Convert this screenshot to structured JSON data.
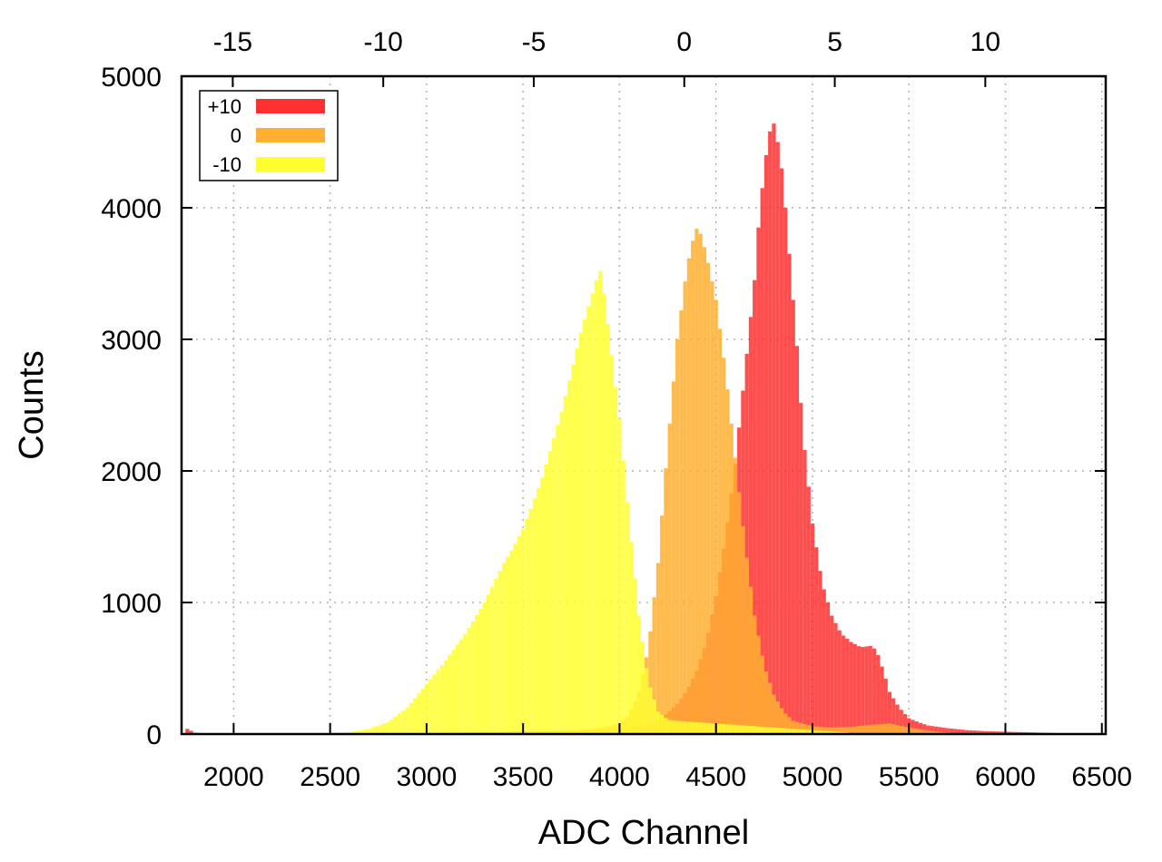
{
  "chart_data": {
    "type": "bar",
    "subtype": "overlapping-histogram",
    "xlabel": "ADC Channel",
    "ylabel": "Counts",
    "xlim": [
      1730,
      6520
    ],
    "ylim": [
      0,
      5000
    ],
    "x2lim": [
      -16.7,
      14.0
    ],
    "x_ticks": [
      2000,
      2500,
      3000,
      3500,
      4000,
      4500,
      5000,
      5500,
      6000,
      6500
    ],
    "x_tick_labels": [
      "2000",
      "2500",
      "3000",
      "3500",
      "4000",
      "4500",
      "5000",
      "5500",
      "6000",
      "6500"
    ],
    "x2_ticks": [
      -15,
      -10,
      -5,
      0,
      5,
      10
    ],
    "x2_tick_labels": [
      "-15",
      "-10",
      "-5",
      "0",
      "5",
      "10"
    ],
    "y_ticks": [
      0,
      1000,
      2000,
      3000,
      4000,
      5000
    ],
    "y_tick_labels": [
      "0",
      "1000",
      "2000",
      "3000",
      "4000",
      "5000"
    ],
    "grid": true,
    "legend_position": "top-left",
    "series": [
      {
        "name": "+10",
        "color": "#ff3030",
        "x": [
          1740,
          1760,
          1800,
          1850,
          1900,
          2000,
          2100,
          2200,
          2300,
          2400,
          2500,
          2600,
          2700,
          2800,
          2900,
          3000,
          3100,
          3200,
          3300,
          3400,
          3500,
          3600,
          3700,
          3800,
          3900,
          4000,
          4100,
          4150,
          4200,
          4250,
          4300,
          4350,
          4400,
          4450,
          4500,
          4550,
          4600,
          4650,
          4700,
          4720,
          4740,
          4760,
          4780,
          4800,
          4820,
          4840,
          4860,
          4880,
          4900,
          4920,
          4950,
          5000,
          5050,
          5100,
          5150,
          5200,
          5250,
          5300,
          5330,
          5350,
          5380,
          5400,
          5450,
          5500,
          5550,
          5600,
          5700,
          5800,
          5900,
          6000,
          6100,
          6200,
          6300,
          6400
        ],
        "values": [
          140,
          40,
          10,
          5,
          3,
          2,
          2,
          2,
          2,
          2,
          3,
          3,
          4,
          5,
          6,
          8,
          10,
          12,
          14,
          16,
          20,
          22,
          26,
          30,
          34,
          40,
          60,
          80,
          110,
          160,
          230,
          330,
          480,
          700,
          1050,
          1500,
          2050,
          2750,
          3450,
          3850,
          4150,
          4400,
          4580,
          4640,
          4500,
          4300,
          4000,
          3650,
          3300,
          2950,
          2300,
          1600,
          1150,
          900,
          760,
          700,
          660,
          670,
          640,
          560,
          420,
          320,
          200,
          120,
          90,
          65,
          45,
          30,
          22,
          18,
          14,
          10,
          6,
          3
        ]
      },
      {
        "name": "0",
        "color": "#ffb030",
        "x": [
          1800,
          2000,
          2200,
          2400,
          2600,
          2800,
          3000,
          3200,
          3400,
          3600,
          3800,
          3900,
          4000,
          4050,
          4100,
          4150,
          4200,
          4250,
          4300,
          4350,
          4380,
          4400,
          4420,
          4450,
          4500,
          4550,
          4600,
          4650,
          4700,
          4750,
          4800,
          4850,
          4900,
          5000,
          5100,
          5200,
          5300,
          5400,
          5500,
          5600,
          5700,
          5800
        ],
        "values": [
          2,
          2,
          2,
          2,
          3,
          4,
          6,
          8,
          12,
          20,
          32,
          45,
          80,
          150,
          320,
          650,
          1300,
          2200,
          3000,
          3550,
          3750,
          3840,
          3800,
          3650,
          3300,
          2750,
          2100,
          1450,
          900,
          520,
          300,
          170,
          100,
          60,
          50,
          55,
          70,
          80,
          50,
          25,
          10,
          4
        ]
      },
      {
        "name": "-10",
        "color": "#ffff30",
        "x": [
          1800,
          2000,
          2200,
          2400,
          2500,
          2600,
          2700,
          2800,
          2900,
          3000,
          3100,
          3200,
          3300,
          3400,
          3450,
          3500,
          3550,
          3600,
          3650,
          3700,
          3750,
          3800,
          3850,
          3880,
          3900,
          3920,
          3950,
          4000,
          4050,
          4100,
          4150,
          4200,
          4250,
          4300,
          4400,
          4500,
          4600,
          4700,
          4800,
          4900,
          5000,
          5100,
          5200
        ],
        "values": [
          5,
          5,
          5,
          5,
          8,
          15,
          40,
          90,
          200,
          380,
          560,
          760,
          1000,
          1300,
          1420,
          1560,
          1750,
          1950,
          2200,
          2450,
          2750,
          3050,
          3300,
          3450,
          3520,
          3350,
          3000,
          2400,
          1600,
          900,
          400,
          170,
          110,
          100,
          90,
          80,
          70,
          60,
          50,
          40,
          30,
          20,
          10
        ]
      }
    ]
  }
}
